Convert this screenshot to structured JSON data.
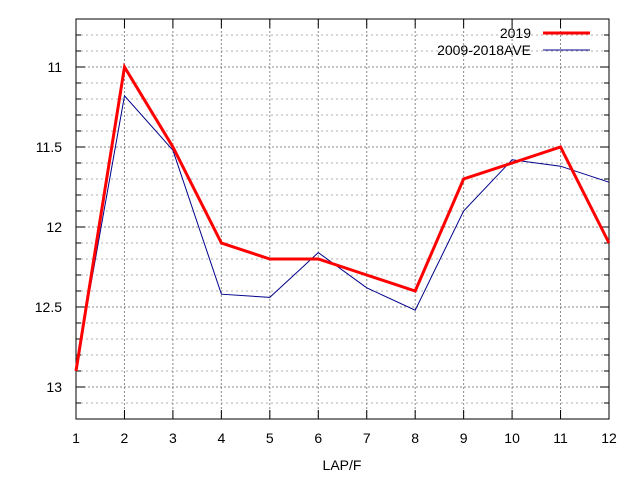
{
  "chart_data": {
    "type": "line",
    "title": "",
    "xlabel": "LAP/F",
    "ylabel": "",
    "x": [
      1,
      2,
      3,
      4,
      5,
      6,
      7,
      8,
      9,
      10,
      11,
      12
    ],
    "xlim": [
      1,
      12
    ],
    "ylim": [
      13.2,
      10.7
    ],
    "y_inverted": true,
    "yticks": [
      11,
      11.5,
      12,
      12.5,
      13
    ],
    "ytick_labels": [
      "11",
      "11.5",
      "12",
      "12.5",
      "13"
    ],
    "xtick_labels": [
      "1",
      "2",
      "3",
      "4",
      "5",
      "6",
      "7",
      "8",
      "9",
      "10",
      "11",
      "12"
    ],
    "grid": true,
    "legend_position": "top-right",
    "series": [
      {
        "name": "2019",
        "color": "#ff0000",
        "values": [
          12.9,
          11.0,
          11.5,
          12.1,
          12.2,
          12.2,
          12.3,
          12.4,
          11.7,
          11.6,
          11.5,
          12.1
        ]
      },
      {
        "name": "2009-2018AVE",
        "color": "#00008b",
        "values": [
          12.88,
          11.18,
          11.52,
          12.42,
          12.44,
          12.16,
          12.38,
          12.52,
          11.9,
          11.58,
          11.62,
          11.72
        ]
      }
    ]
  }
}
